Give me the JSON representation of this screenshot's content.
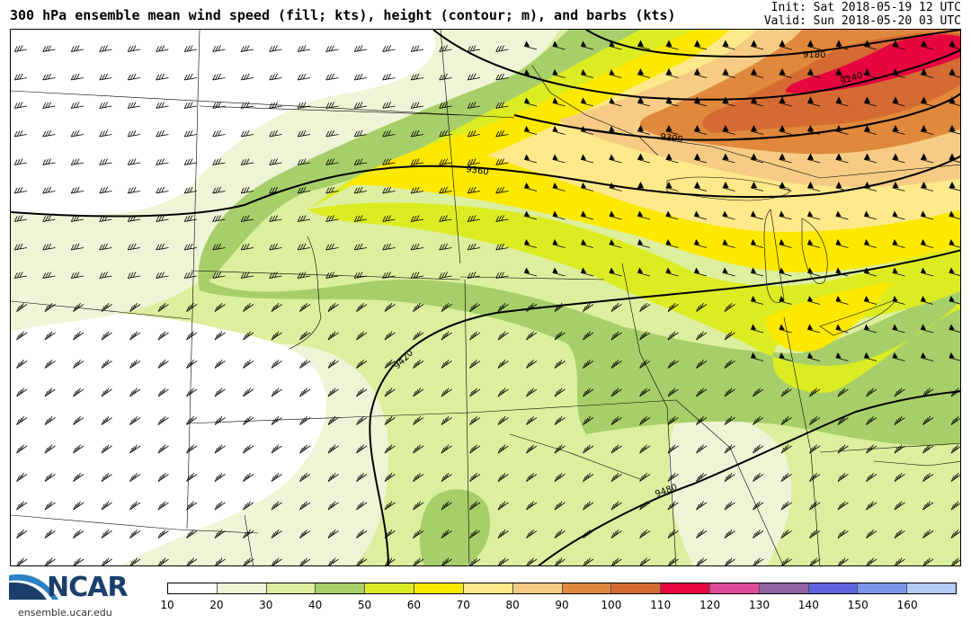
{
  "title": "300 hPa ensemble mean wind speed (fill; kts), height (contour; m), and barbs (kts)",
  "init_label": "Init: Sat 2018-05-19 12 UTC",
  "valid_label": "Valid: Sun 2018-05-20 03 UTC",
  "logo": {
    "word": "NCAR",
    "url": "ensemble.ucar.edu"
  },
  "colorbar": {
    "ticks": [
      "10",
      "20",
      "30",
      "40",
      "50",
      "60",
      "70",
      "80",
      "90",
      "100",
      "110",
      "120",
      "130",
      "140",
      "150",
      "160"
    ],
    "colors": [
      "#ffffff",
      "#eef5d6",
      "#dcef9e",
      "#a7cf69",
      "#dcec23",
      "#fde800",
      "#ffe98a",
      "#f6cc84",
      "#e0883b",
      "#d56b33",
      "#e6053f",
      "#de4a9a",
      "#8f62a2",
      "#5e64e0",
      "#7b95ed",
      "#b4c9f5"
    ]
  },
  "contours": [
    {
      "label": "9180",
      "value": 9180
    },
    {
      "label": "9240",
      "value": 9240
    },
    {
      "label": "9300",
      "value": 9300
    },
    {
      "label": "9360",
      "value": 9360
    },
    {
      "label": "9420",
      "value": 9420
    },
    {
      "label": "9480",
      "value": 9480
    }
  ]
}
